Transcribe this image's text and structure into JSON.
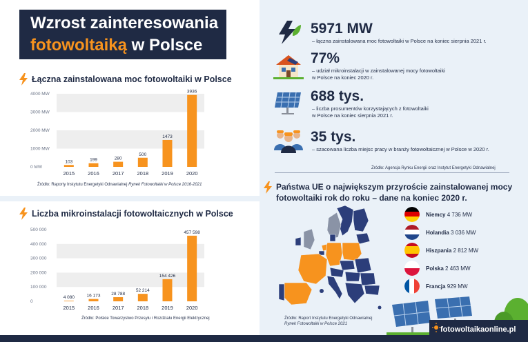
{
  "header": {
    "title_part1": "Wzrost zainteresowania",
    "title_highlight": "fotowoltaiką",
    "title_part2": " w Polsce"
  },
  "charts": {
    "capacity": {
      "section_title": "Łączna zainstalowana moc fotowoltaiki w Polsce",
      "source_prefix": "Źródło: Raporty Instytutu Energetyki Odnawialnej ",
      "source_italic": "Rynek Fotowoltaiki w Polsce 2016-2021"
    },
    "micro": {
      "section_title": "Liczba mikroinstalacji fotowoltaicznych w Polsce",
      "source": "Źródło: Polskie Towarzystwo Przesyłu i Rozdziału Energii Elektrycznej"
    }
  },
  "chart_data": [
    {
      "type": "bar",
      "title": "Łączna zainstalowana moc fotowoltaiki w Polsce",
      "categories": [
        "2015",
        "2016",
        "2017",
        "2018",
        "2019",
        "2020"
      ],
      "values": [
        103,
        199,
        280,
        500,
        1473,
        3936
      ],
      "value_labels": [
        "103",
        "199",
        "280",
        "500",
        "1473",
        "3936"
      ],
      "ylim": [
        0,
        4000
      ],
      "yticks": [
        0,
        1000,
        2000,
        3000,
        4000
      ],
      "ytick_labels": [
        "0 MW",
        "1000 MW",
        "2000 MW",
        "3000 MW",
        "4000 MW"
      ],
      "grid": "alternating bands",
      "color": "#f7931e"
    },
    {
      "type": "bar",
      "title": "Liczba mikroinstalacji fotowoltaicznych w Polsce",
      "categories": [
        "2015",
        "2016",
        "2017",
        "2018",
        "2019",
        "2020"
      ],
      "values": [
        4080,
        16173,
        28788,
        52214,
        154426,
        457598
      ],
      "value_labels": [
        "4 080",
        "16 173",
        "28 788",
        "52 214",
        "154 426",
        "457 598"
      ],
      "ylim": [
        0,
        500000
      ],
      "yticks": [
        0,
        100000,
        200000,
        300000,
        400000,
        500000
      ],
      "ytick_labels": [
        "0",
        "100 000",
        "200 000",
        "300 000",
        "400 000",
        "500 000"
      ],
      "grid": "alternating bands",
      "color": "#f7931e"
    }
  ],
  "stats": [
    {
      "big": "5971 MW",
      "desc1": "– łączna zainstalowana moc fotowoltaiki w Polsce na koniec sierpnia 2021 r.",
      "desc2": "",
      "icon": "lightning-leaf-icon"
    },
    {
      "big": "77%",
      "desc1": "– udział mikroinstalacji w zainstalowanej mocy fotowoltaiki",
      "desc2": "w Polsce na koniec 2020 r.",
      "icon": "house-solar-icon"
    },
    {
      "big": "688 tys.",
      "desc1": "– liczba prosumentów korzystających z fotowoltaiki",
      "desc2": "w Polsce na koniec sierpnia 2021 r.",
      "icon": "solar-panel-icon"
    },
    {
      "big": "35 tys.",
      "desc1": "– szacowana liczba miejsc pracy w branży fotowoltaicznej w Polsce w 2020 r.",
      "desc2": "",
      "icon": "workers-icon"
    }
  ],
  "stats_source": "Źródło: Agencja Rynku Energii oraz Instytut Energetyki Odnawialnej",
  "eu": {
    "title_line1": "Państwa UE o największym przyroście zainstalowanej mocy",
    "title_line2": "fotowoltaiki rok do roku – dane na koniec 2020 r.",
    "countries": [
      {
        "name": "Niemcy",
        "value": "4 736 MW",
        "flag": "germany-flag-icon"
      },
      {
        "name": "Holandia",
        "value": "3 036 MW",
        "flag": "netherlands-flag-icon"
      },
      {
        "name": "Hiszpania",
        "value": "2 812 MW",
        "flag": "spain-flag-icon"
      },
      {
        "name": "Polska",
        "value": "2 463 MW",
        "flag": "poland-flag-icon"
      },
      {
        "name": "Francja",
        "value": "929 MW",
        "flag": "france-flag-icon"
      }
    ],
    "source_line1": "Źródło: Raport Instytutu Energetyki Odnawialnej",
    "source_line2": "Rynek Fotowoltaiki w Polsce 2021"
  },
  "brand": "fotowoltaikaonline.pl",
  "colors": {
    "navy": "#1f2a44",
    "orange": "#f7931e",
    "band": "#eeeeee",
    "panel": "#eaf1f8",
    "map": "#2c3e7a"
  }
}
